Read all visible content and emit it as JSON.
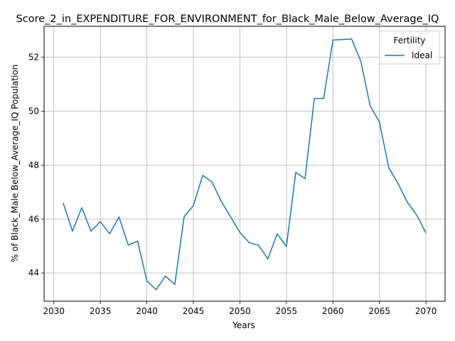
{
  "chart_data": {
    "type": "line",
    "title": "Score_2_in_EXPENDITURE_FOR_ENVIRONMENT_for_Black_Male_Below_Average_IQ",
    "xlabel": "Years",
    "ylabel": "% of Black_Male Below_Average_IQ Population",
    "xlim": [
      2028.95,
      2072.05
    ],
    "ylim": [
      42.95,
      53.15
    ],
    "xticks": [
      2030,
      2035,
      2040,
      2045,
      2050,
      2055,
      2060,
      2065,
      2070
    ],
    "yticks": [
      44,
      46,
      48,
      50,
      52
    ],
    "grid": true,
    "legend": {
      "title": "Fertility",
      "position": "top-right"
    },
    "x": [
      2031,
      2032,
      2033,
      2034,
      2035,
      2036,
      2037,
      2038,
      2039,
      2040,
      2041,
      2042,
      2043,
      2044,
      2045,
      2046,
      2047,
      2048,
      2049,
      2050,
      2051,
      2052,
      2053,
      2054,
      2055,
      2056,
      2057,
      2058,
      2059,
      2060,
      2061,
      2062,
      2063,
      2064,
      2065,
      2066,
      2067,
      2068,
      2069,
      2070
    ],
    "series": [
      {
        "name": "Ideal",
        "color": "#1f77b4",
        "values": [
          46.6,
          45.55,
          46.42,
          45.55,
          45.9,
          45.45,
          46.08,
          45.03,
          45.18,
          43.7,
          43.38,
          43.88,
          43.57,
          46.08,
          46.5,
          47.62,
          47.37,
          46.65,
          46.08,
          45.5,
          45.12,
          45.03,
          44.52,
          45.45,
          44.98,
          47.73,
          47.5,
          50.47,
          50.47,
          52.64,
          52.66,
          52.68,
          51.85,
          50.2,
          49.6,
          47.9,
          47.32,
          46.62,
          46.15,
          45.48
        ]
      }
    ]
  }
}
